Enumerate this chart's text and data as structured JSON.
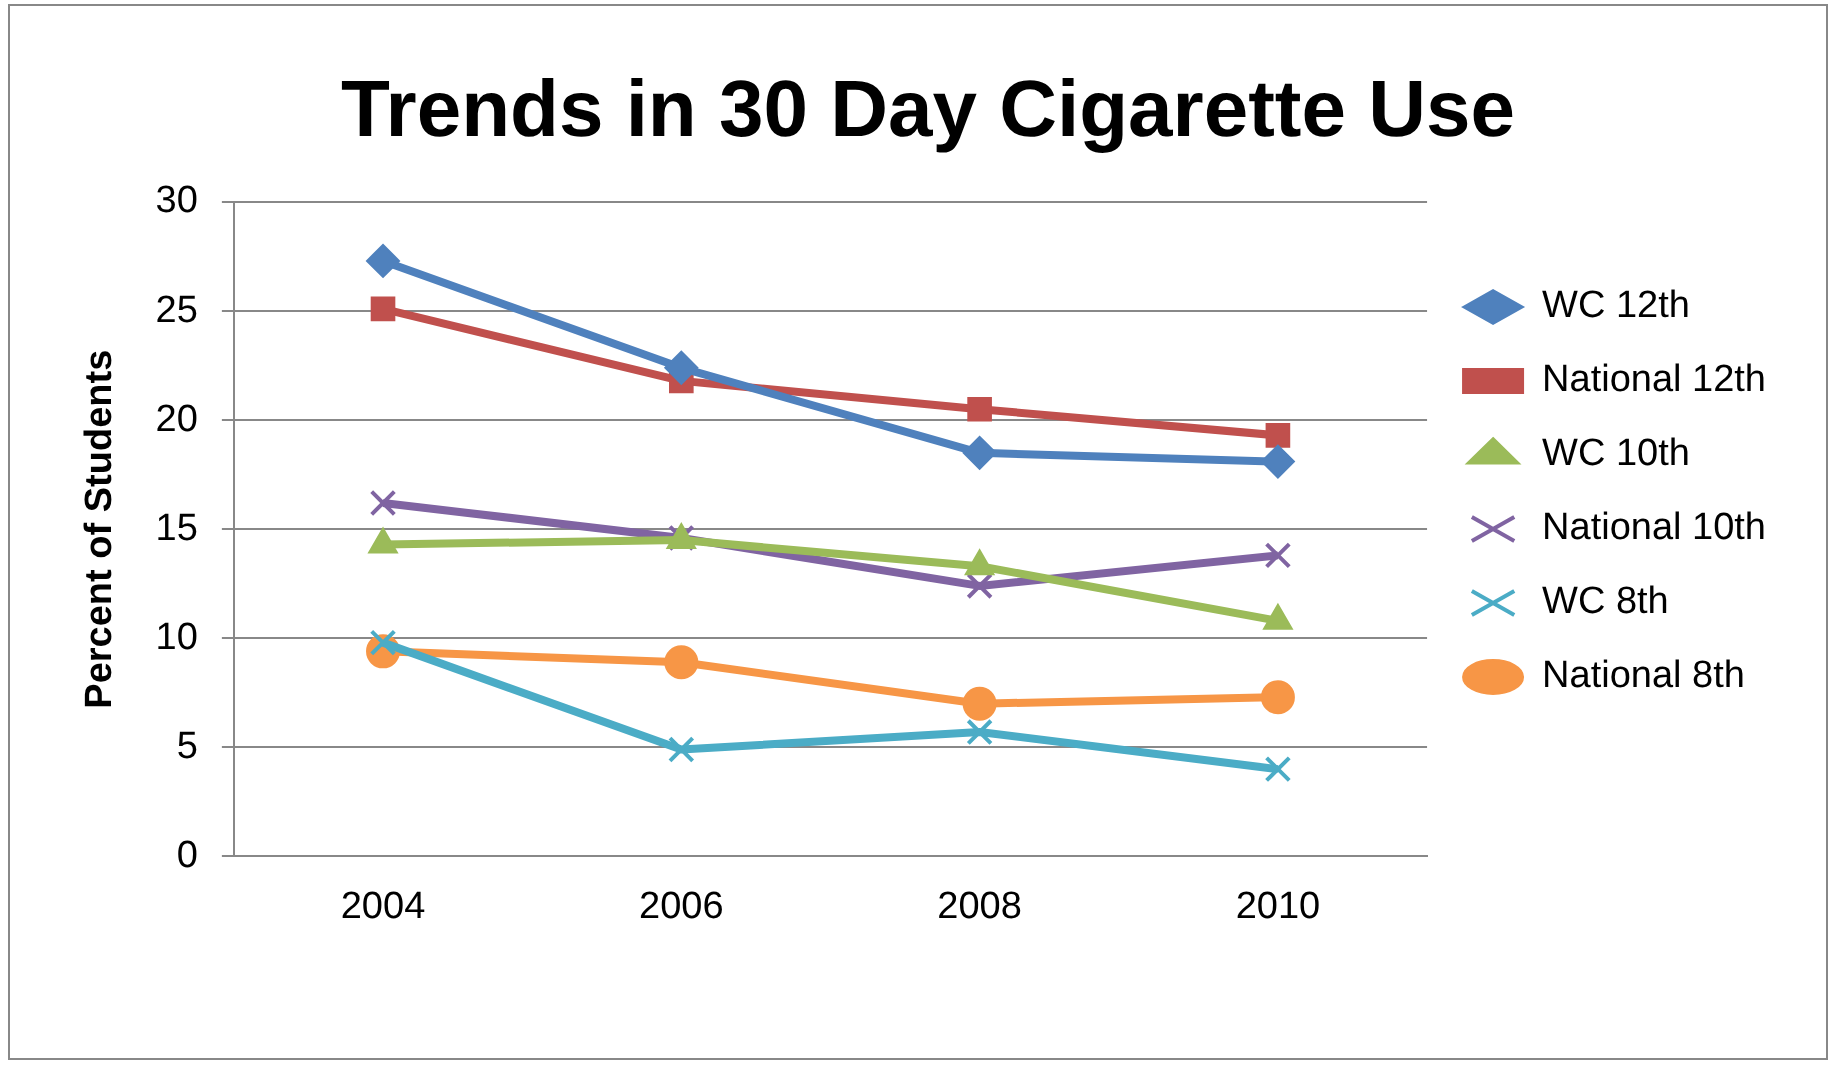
{
  "chart_data": {
    "type": "line",
    "title": "Trends in 30 Day Cigarette Use",
    "ylabel": "Percent of Students",
    "categories": [
      "2004",
      "2006",
      "2008",
      "2010"
    ],
    "ylim": [
      0,
      30
    ],
    "yticks": [
      0,
      5,
      10,
      15,
      20,
      25,
      30
    ],
    "grid": "y",
    "legend": "right",
    "line_style": "solid",
    "series": [
      {
        "name": "WC 12th",
        "color": "#4f81bd",
        "marker": "diamond",
        "values": [
          27.3,
          22.4,
          18.5,
          18.1
        ]
      },
      {
        "name": "National 12th",
        "color": "#c0504d",
        "marker": "square",
        "values": [
          25.1,
          21.8,
          20.5,
          19.3
        ]
      },
      {
        "name": "WC 10th",
        "color": "#9bbb59",
        "marker": "triangle",
        "values": [
          14.3,
          14.5,
          13.3,
          10.8
        ]
      },
      {
        "name": "National 10th",
        "color": "#8064a2",
        "marker": "cross",
        "values": [
          16.2,
          14.6,
          12.4,
          13.8
        ]
      },
      {
        "name": "WC 8th",
        "color": "#4bacc6",
        "marker": "cross",
        "values": [
          9.8,
          4.9,
          5.7,
          4.0
        ]
      },
      {
        "name": "National 8th",
        "color": "#f79646",
        "marker": "circle",
        "values": [
          9.4,
          8.9,
          7.0,
          7.3
        ]
      }
    ]
  }
}
